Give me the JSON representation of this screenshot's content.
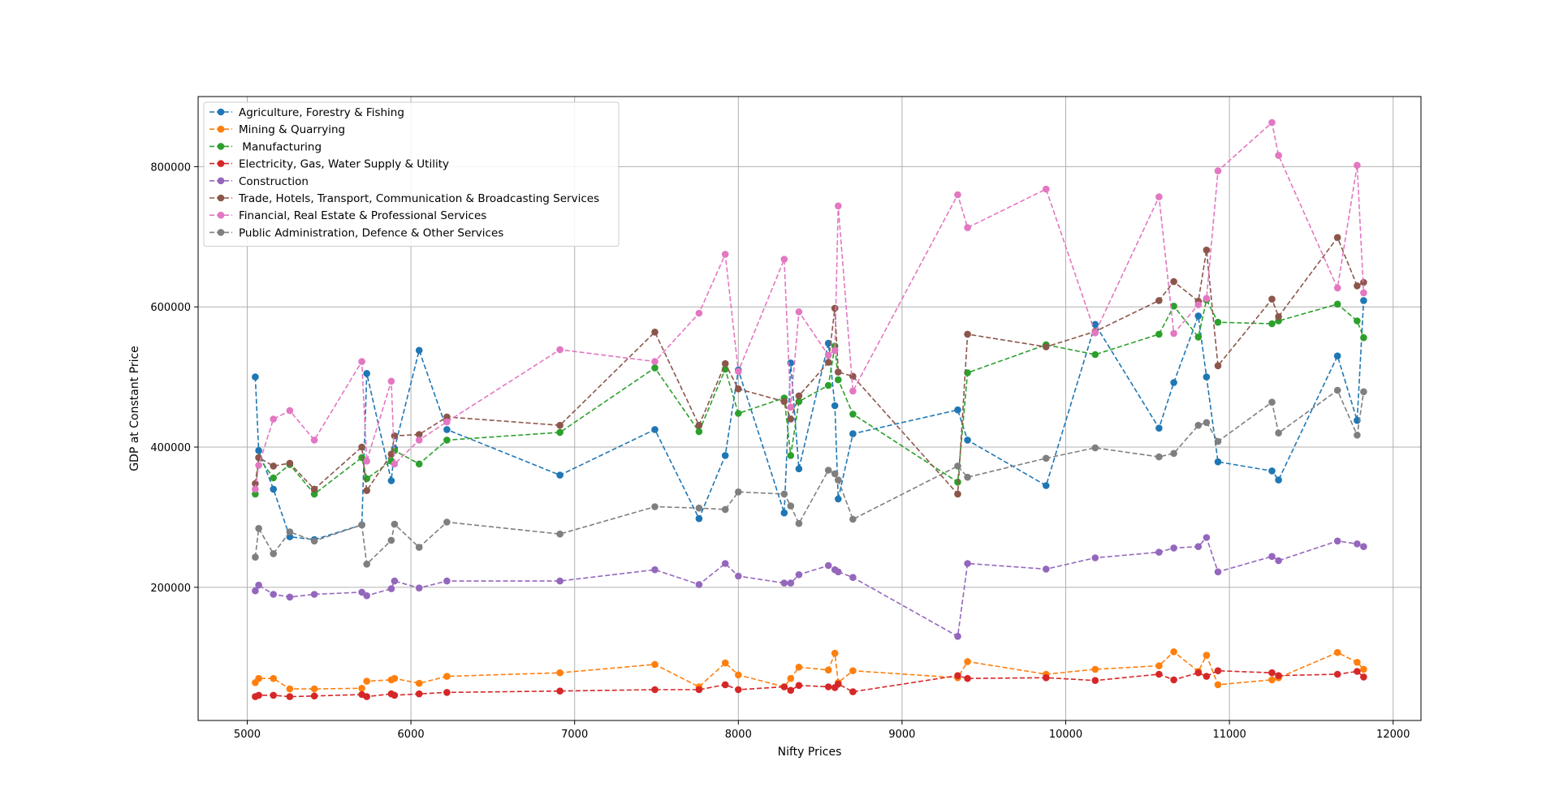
{
  "chart_data": {
    "type": "line",
    "title": "",
    "xlabel": "Nifty Prices",
    "ylabel": "GDP at Constant Price",
    "xlim": [
      4700,
      12170
    ],
    "ylim": [
      10000,
      900000
    ],
    "xticks": [
      5000,
      6000,
      7000,
      8000,
      9000,
      10000,
      11000,
      12000
    ],
    "yticks": [
      200000,
      400000,
      600000,
      800000
    ],
    "grid": true,
    "legend_position": "top-left",
    "line_style": "dashed",
    "marker": "circle",
    "x": [
      5049,
      5070,
      5160,
      5260,
      5410,
      5700,
      5730,
      5880,
      5900,
      6050,
      6220,
      6910,
      7490,
      7760,
      7920,
      8000,
      8280,
      8320,
      8370,
      8550,
      8590,
      8610,
      8700,
      9340,
      9400,
      9880,
      10180,
      10570,
      10660,
      10810,
      10860,
      10930,
      11260,
      11300,
      11660,
      11780,
      11820
    ],
    "series": [
      {
        "name": "Agriculture, Forestry & Fishing",
        "color": "#1f77b4",
        "values": [
          500000,
          395000,
          340000,
          272000,
          268000,
          289000,
          505000,
          352000,
          398000,
          538000,
          425000,
          360000,
          425000,
          298000,
          388000,
          510000,
          306000,
          520000,
          369000,
          548000,
          459000,
          326000,
          419000,
          453000,
          410000,
          345000,
          575000,
          427000,
          492000,
          587000,
          500000,
          379000,
          366000,
          353000,
          530000,
          438000,
          609000
        ]
      },
      {
        "name": "Mining & Quarrying",
        "color": "#ff7f0e",
        "values": [
          64000,
          70000,
          70000,
          55000,
          55000,
          56000,
          66000,
          68000,
          70000,
          63000,
          73000,
          78000,
          90000,
          58000,
          92000,
          75000,
          58000,
          70000,
          86000,
          82000,
          106000,
          64000,
          81000,
          71000,
          94000,
          76000,
          83000,
          88000,
          108000,
          80000,
          103000,
          61000,
          68000,
          71000,
          107000,
          93000,
          83000
        ]
      },
      {
        "name": " Manufacturing",
        "color": "#2ca02c",
        "values": [
          333000,
          385000,
          356000,
          375000,
          333000,
          385000,
          355000,
          380000,
          395000,
          376000,
          410000,
          421000,
          513000,
          422000,
          511000,
          448000,
          470000,
          388000,
          465000,
          488000,
          544000,
          496000,
          447000,
          350000,
          506000,
          546000,
          532000,
          561000,
          601000,
          557000,
          610000,
          578000,
          576000,
          580000,
          604000,
          580000,
          556000
        ]
      },
      {
        "name": "Electricity, Gas, Water Supply & Utility",
        "color": "#d62728",
        "values": [
          44000,
          46000,
          46000,
          44000,
          45000,
          47000,
          44000,
          48000,
          46000,
          48000,
          50000,
          52000,
          54000,
          54000,
          61000,
          54000,
          58000,
          53000,
          60000,
          58000,
          57000,
          62000,
          51000,
          74000,
          70000,
          71000,
          67000,
          76000,
          68000,
          78000,
          73000,
          81000,
          78000,
          74000,
          76000,
          80000,
          72000
        ]
      },
      {
        "name": "Construction",
        "color": "#9467bd",
        "values": [
          195000,
          203000,
          190000,
          186000,
          190000,
          193000,
          188000,
          198000,
          209000,
          199000,
          209000,
          209000,
          225000,
          204000,
          234000,
          216000,
          206000,
          206000,
          218000,
          231000,
          225000,
          222000,
          214000,
          130000,
          234000,
          226000,
          242000,
          250000,
          256000,
          258000,
          271000,
          222000,
          244000,
          238000,
          266000,
          262000,
          258000
        ]
      },
      {
        "name": "Trade, Hotels, Transport, Communication & Broadcasting Services",
        "color": "#8c564b",
        "values": [
          348000,
          385000,
          373000,
          377000,
          340000,
          400000,
          338000,
          390000,
          416000,
          418000,
          443000,
          431000,
          564000,
          431000,
          519000,
          483000,
          465000,
          440000,
          473000,
          521000,
          598000,
          507000,
          501000,
          333000,
          561000,
          543000,
          565000,
          609000,
          636000,
          608000,
          681000,
          516000,
          611000,
          586000,
          699000,
          630000,
          635000
        ]
      },
      {
        "name": "Financial, Real Estate & Professional Services",
        "color": "#e377c2",
        "values": [
          340000,
          374000,
          440000,
          452000,
          410000,
          522000,
          380000,
          494000,
          376000,
          410000,
          436000,
          539000,
          522000,
          591000,
          675000,
          508000,
          668000,
          457000,
          593000,
          531000,
          538000,
          744000,
          480000,
          760000,
          713000,
          768000,
          563000,
          757000,
          562000,
          603000,
          612000,
          794000,
          863000,
          816000,
          627000,
          802000,
          620000
        ]
      },
      {
        "name": "Public Administration, Defence & Other Services",
        "color": "#7f7f7f",
        "values": [
          243000,
          284000,
          248000,
          279000,
          266000,
          289000,
          233000,
          267000,
          290000,
          257000,
          293000,
          276000,
          315000,
          313000,
          311000,
          336000,
          333000,
          316000,
          291000,
          367000,
          362000,
          353000,
          297000,
          373000,
          357000,
          384000,
          399000,
          386000,
          391000,
          431000,
          435000,
          408000,
          464000,
          420000,
          481000,
          417000,
          479000
        ]
      }
    ]
  }
}
